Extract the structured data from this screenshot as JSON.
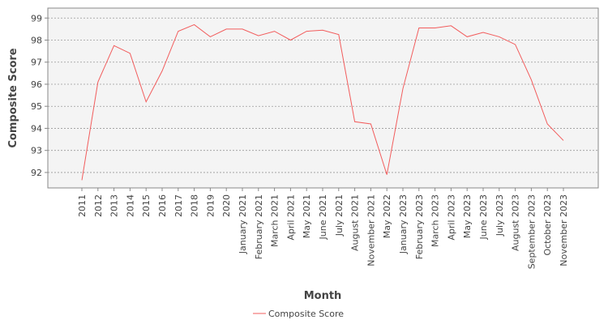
{
  "chart_data": {
    "type": "line",
    "x_label": "Month",
    "y_label": "Composite Score",
    "categories": [
      "2011",
      "2012",
      "2013",
      "2014",
      "2015",
      "2016",
      "2017",
      "2018",
      "2019",
      "2020",
      "January 2021",
      "February 2021",
      "March 2021",
      "April 2021",
      "May 2021",
      "June 2021",
      "July 2021",
      "August 2021",
      "November 2021",
      "May 2022",
      "January 2023",
      "February 2023",
      "March 2023",
      "April 2023",
      "May 2023",
      "June 2023",
      "July 2023",
      "August 2023",
      "September 2023",
      "October 2023",
      "November 2023"
    ],
    "series": [
      {
        "name": "Composite Score",
        "color": "#f25c5c",
        "values": [
          91.65,
          96.1,
          97.75,
          97.4,
          95.2,
          96.6,
          98.4,
          98.7,
          98.15,
          98.5,
          98.5,
          98.2,
          98.4,
          98.0,
          98.4,
          98.45,
          98.25,
          94.3,
          94.2,
          91.9,
          95.8,
          98.55,
          98.55,
          98.65,
          98.15,
          98.35,
          98.15,
          97.8,
          96.2,
          94.2,
          93.45
        ]
      }
    ],
    "ylim": [
      91.3,
      99.45
    ],
    "yticks": [
      92,
      93,
      94,
      95,
      96,
      97,
      98,
      99
    ],
    "grid": true
  }
}
